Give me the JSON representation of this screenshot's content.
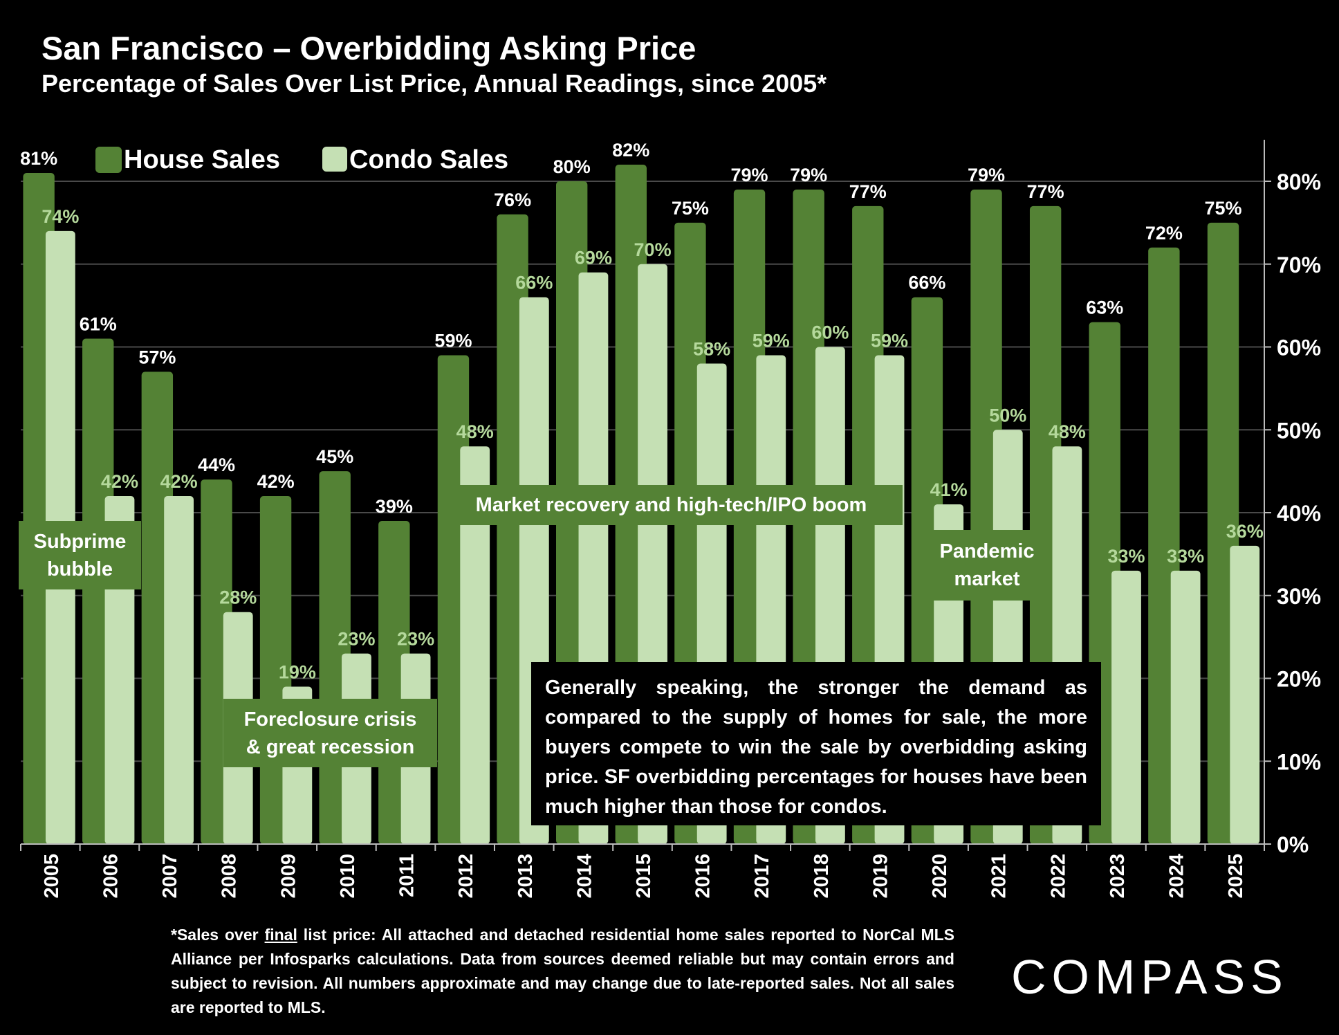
{
  "header": {
    "title": "San Francisco – Overbidding Asking Price",
    "subtitle": "Percentage of Sales Over List Price, Annual Readings, since 2005*"
  },
  "colors": {
    "house": "#548235",
    "condo": "#c5e0b4",
    "condo_label": "#b5d99c",
    "background": "#000000"
  },
  "chart_data": {
    "type": "bar",
    "title": "San Francisco – Overbidding Asking Price",
    "categories": [
      "2005",
      "2006",
      "2007",
      "2008",
      "2009",
      "2010",
      "2011",
      "2012",
      "2013",
      "2014",
      "2015",
      "2016",
      "2017",
      "2018",
      "2019",
      "2020",
      "2021",
      "2022",
      "2023",
      "2024",
      "2025"
    ],
    "series": [
      {
        "name": "House Sales",
        "values": [
          81,
          61,
          57,
          44,
          42,
          45,
          39,
          59,
          76,
          80,
          82,
          75,
          79,
          79,
          77,
          66,
          79,
          77,
          63,
          72,
          75
        ]
      },
      {
        "name": "Condo Sales",
        "values": [
          74,
          42,
          42,
          28,
          19,
          23,
          23,
          48,
          66,
          69,
          70,
          58,
          59,
          60,
          59,
          41,
          50,
          48,
          33,
          33,
          36
        ]
      }
    ],
    "yticks": [
      "0%",
      "10%",
      "20%",
      "30%",
      "40%",
      "50%",
      "60%",
      "70%",
      "80%"
    ],
    "ylim": [
      0,
      85
    ],
    "yaxis_position": "right",
    "grid": true,
    "legend_position": "top-left",
    "annotations": [
      "Subprime bubble",
      "Foreclosure crisis & great recession",
      "Market recovery and high-tech/IPO boom",
      "Pandemic market"
    ]
  },
  "annotations": {
    "subprime": [
      "Subprime",
      "bubble"
    ],
    "foreclosure": [
      "Foreclosure crisis",
      "& great recession"
    ],
    "recovery": "Market recovery and high-tech/IPO boom",
    "pandemic": [
      "Pandemic",
      "market"
    ]
  },
  "note": "Generally speaking, the stronger the demand as compared to the supply of homes for sale, the more buyers compete to win the sale by overbidding asking price. SF overbidding percentages for houses have been much higher than those for condos.",
  "footnote": {
    "prefix": "*Sales over ",
    "underlined": "final",
    "rest": " list price: All attached and detached residential home sales reported to NorCal MLS Alliance per Infosparks calculations. Data from sources deemed reliable but may contain errors and subject to revision. All numbers approximate and may change due to late-reported sales. Not all sales are reported to MLS."
  },
  "logo": "COMPASS"
}
